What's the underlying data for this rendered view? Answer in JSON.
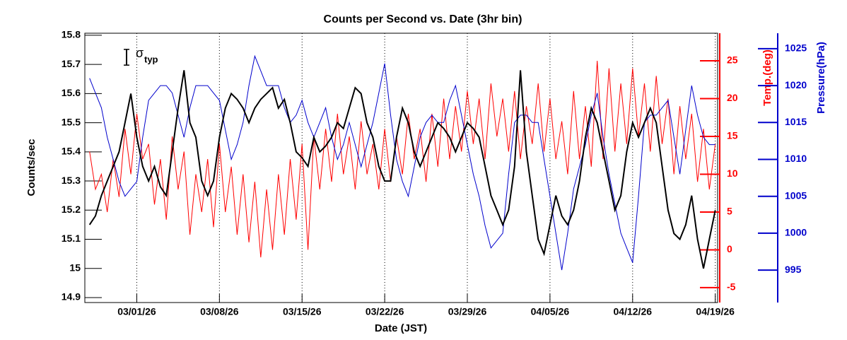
{
  "chart_data": {
    "type": "line",
    "title": "Counts per Second vs. Date (3hr bin)",
    "x_label": "Date (JST)",
    "y_label": "Counts/sec",
    "y2_label": "Temp.(deg)",
    "y3_label": "Pressure(hPa)",
    "annotation": "σ",
    "annotation_sub": "typ",
    "sigma_typ": 0.027,
    "grid": true,
    "xlim": [
      -4.4,
      49.2
    ],
    "xticks": [
      {
        "value": 0,
        "label": "03/01/26"
      },
      {
        "value": 7,
        "label": "03/08/26"
      },
      {
        "value": 14,
        "label": "03/15/26"
      },
      {
        "value": 21,
        "label": "03/22/26"
      },
      {
        "value": 28,
        "label": "03/29/26"
      },
      {
        "value": 35,
        "label": "04/05/26"
      },
      {
        "value": 42,
        "label": "04/12/26"
      },
      {
        "value": 49,
        "label": "04/19/26"
      }
    ],
    "ylim": [
      14.883,
      15.807
    ],
    "yticks": [
      14.9,
      15,
      15.1,
      15.2,
      15.3,
      15.4,
      15.5,
      15.6,
      15.7,
      15.8
    ],
    "y2lim": [
      -6.97,
      28.65
    ],
    "y2ticks": [
      -5,
      0,
      5,
      10,
      15,
      20,
      25
    ],
    "y3lim": [
      990.6,
      1027.1
    ],
    "y3ticks": [
      995,
      1000,
      1005,
      1010,
      1015,
      1020,
      1025
    ],
    "x": [
      -4,
      -3.5,
      -3,
      -2.5,
      -2,
      -1.5,
      -1,
      -0.5,
      0,
      0.5,
      1,
      1.5,
      2,
      2.5,
      3,
      3.5,
      4,
      4.5,
      5,
      5.5,
      6,
      6.5,
      7,
      7.5,
      8,
      8.5,
      9,
      9.5,
      10,
      10.5,
      11,
      11.5,
      12,
      12.5,
      13,
      13.5,
      14,
      14.5,
      15,
      15.5,
      16,
      16.5,
      17,
      17.5,
      18,
      18.5,
      19,
      19.5,
      20,
      20.5,
      21,
      21.5,
      22,
      22.5,
      23,
      23.5,
      24,
      24.5,
      25,
      25.5,
      26,
      26.5,
      27,
      27.5,
      28,
      28.5,
      29,
      29.5,
      30,
      30.5,
      31,
      31.5,
      32,
      32.5,
      33,
      33.5,
      34,
      34.5,
      35,
      35.5,
      36,
      36.5,
      37,
      37.5,
      38,
      38.5,
      39,
      39.5,
      40,
      40.5,
      41,
      41.5,
      42,
      42.5,
      43,
      43.5,
      44,
      44.5,
      45,
      45.5,
      46,
      46.5,
      47,
      47.5,
      48,
      48.5,
      49
    ],
    "series": [
      {
        "name": "Counts/sec",
        "axis": "y",
        "color": "#000000",
        "values": [
          15.15,
          15.18,
          15.25,
          15.3,
          15.35,
          15.4,
          15.5,
          15.6,
          15.45,
          15.35,
          15.3,
          15.35,
          15.28,
          15.25,
          15.4,
          15.55,
          15.68,
          15.5,
          15.45,
          15.3,
          15.25,
          15.3,
          15.45,
          15.55,
          15.6,
          15.58,
          15.55,
          15.5,
          15.55,
          15.58,
          15.6,
          15.62,
          15.55,
          15.58,
          15.5,
          15.4,
          15.38,
          15.35,
          15.45,
          15.4,
          15.42,
          15.45,
          15.5,
          15.48,
          15.55,
          15.62,
          15.6,
          15.5,
          15.45,
          15.35,
          15.3,
          15.3,
          15.45,
          15.55,
          15.5,
          15.4,
          15.35,
          15.4,
          15.45,
          15.5,
          15.48,
          15.45,
          15.4,
          15.45,
          15.5,
          15.48,
          15.45,
          15.35,
          15.25,
          15.2,
          15.15,
          15.2,
          15.35,
          15.68,
          15.4,
          15.25,
          15.1,
          15.05,
          15.15,
          15.25,
          15.18,
          15.15,
          15.2,
          15.3,
          15.45,
          15.55,
          15.5,
          15.4,
          15.3,
          15.2,
          15.25,
          15.4,
          15.5,
          15.45,
          15.5,
          15.55,
          15.5,
          15.35,
          15.2,
          15.12,
          15.1,
          15.15,
          15.25,
          15.1,
          15.0,
          15.1,
          15.2
        ]
      },
      {
        "name": "Temp.(deg)",
        "axis": "y2",
        "color": "#ff0000",
        "values": [
          13,
          8,
          10,
          5,
          12,
          7,
          16,
          10,
          18,
          12,
          14,
          6,
          12,
          4,
          15,
          8,
          13,
          2,
          10,
          5,
          12,
          3,
          14,
          5,
          11,
          2,
          10,
          1,
          9,
          -1,
          8,
          0,
          10,
          2,
          12,
          4,
          14,
          0,
          15,
          8,
          16,
          9,
          18,
          10,
          15,
          8,
          17,
          10,
          14,
          8,
          16,
          9,
          15,
          10,
          18,
          12,
          16,
          9,
          18,
          11,
          20,
          12,
          19,
          13,
          21,
          14,
          20,
          12,
          22,
          15,
          20,
          13,
          21,
          12,
          19,
          14,
          22,
          13,
          20,
          12,
          17,
          10,
          21,
          12,
          19,
          11,
          25,
          12,
          24,
          13,
          22,
          14,
          24,
          15,
          22,
          13,
          23,
          14,
          20,
          10,
          19,
          12,
          18,
          9,
          16,
          8,
          14
        ]
      },
      {
        "name": "Pressure(hPa)",
        "axis": "y3",
        "color": "#0000cc",
        "values": [
          1021,
          1019,
          1017,
          1013,
          1010,
          1007,
          1005,
          1006,
          1007,
          1013,
          1018,
          1019,
          1020,
          1020,
          1019,
          1016,
          1013,
          1017,
          1020,
          1020,
          1020,
          1019,
          1018,
          1014,
          1010,
          1012,
          1015,
          1020,
          1024,
          1022,
          1020,
          1020,
          1020,
          1017,
          1015,
          1016,
          1018,
          1015,
          1013,
          1015,
          1017,
          1013,
          1010,
          1012,
          1015,
          1012,
          1009,
          1012,
          1015,
          1019,
          1023,
          1016,
          1010,
          1007,
          1005,
          1009,
          1013,
          1015,
          1016,
          1015,
          1015,
          1018,
          1020,
          1016,
          1012,
          1008,
          1005,
          1001,
          998,
          999,
          1000,
          1008,
          1015,
          1016,
          1016,
          1015,
          1015,
          1010,
          1005,
          1000,
          995,
          1000,
          1006,
          1009,
          1012,
          1016,
          1019,
          1013,
          1008,
          1004,
          1000,
          998,
          996,
          1005,
          1015,
          1016,
          1016,
          1017,
          1018,
          1013,
          1008,
          1014,
          1020,
          1016,
          1013,
          1012,
          1012
        ]
      }
    ]
  }
}
